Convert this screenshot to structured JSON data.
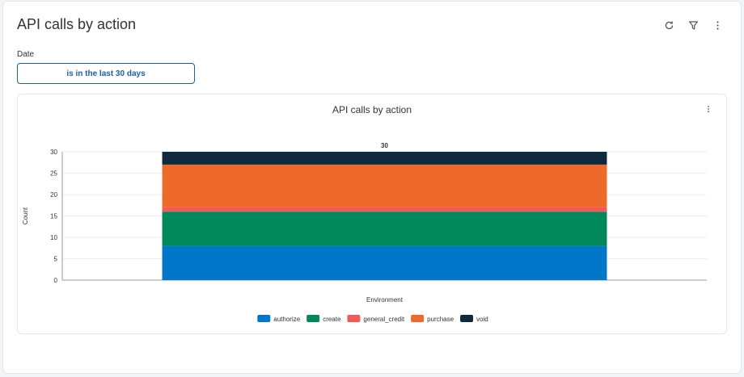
{
  "card": {
    "title": "API calls by action",
    "tools": [
      {
        "name": "refresh-icon"
      },
      {
        "name": "filter-icon"
      },
      {
        "name": "more-vertical-icon"
      }
    ]
  },
  "filter": {
    "label": "Date",
    "value": "is in the last 30 days"
  },
  "chart_data": {
    "type": "bar",
    "stacked": true,
    "title": "API calls by action",
    "xlabel": "Environment",
    "ylabel": "Count",
    "categories": [
      ""
    ],
    "ylim": [
      0,
      30
    ],
    "yticks": [
      "0",
      "5",
      "10",
      "15",
      "20",
      "25",
      "30"
    ],
    "total_labels": [
      "30"
    ],
    "series": [
      {
        "name": "authorize",
        "values": [
          8
        ],
        "color": "#0077c8"
      },
      {
        "name": "create",
        "values": [
          8
        ],
        "color": "#00875a"
      },
      {
        "name": "general_credit",
        "values": [
          1
        ],
        "color": "#f05a5a"
      },
      {
        "name": "purchase",
        "values": [
          10
        ],
        "color": "#ee6a2a"
      },
      {
        "name": "void",
        "values": [
          3
        ],
        "color": "#0f2a3d"
      }
    ],
    "grid": true,
    "legend": "bottom"
  }
}
